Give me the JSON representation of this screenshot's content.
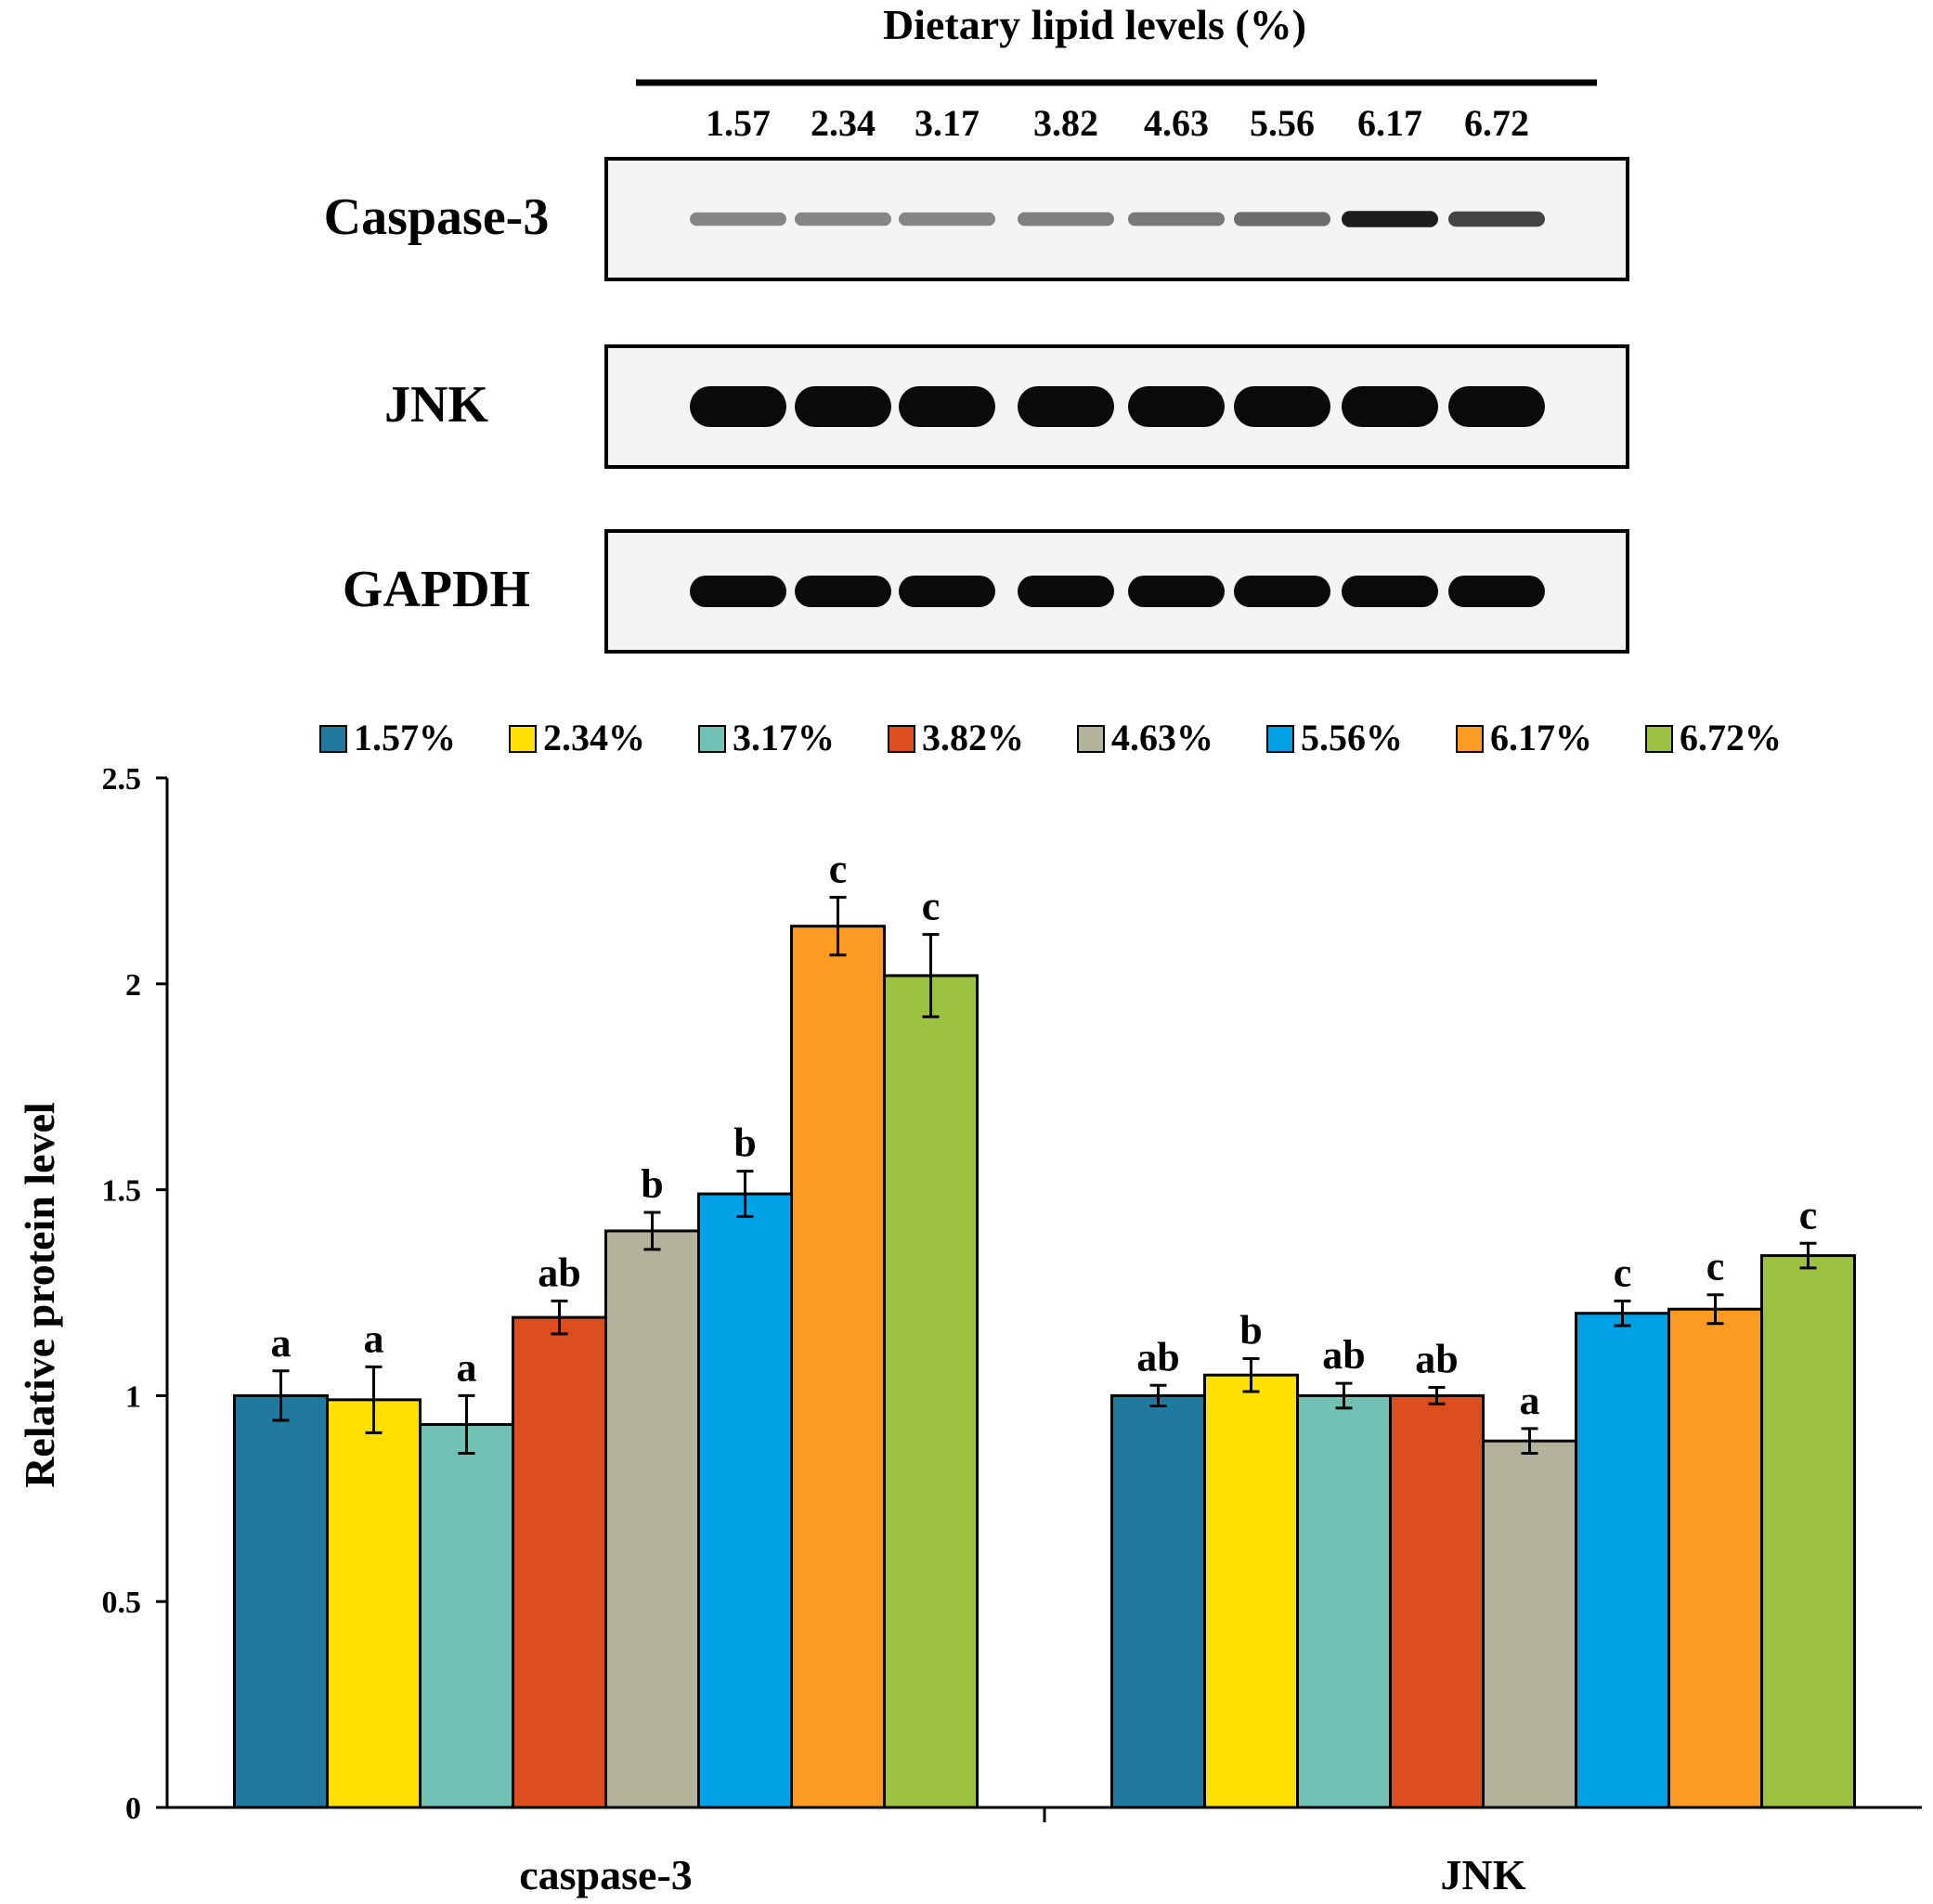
{
  "blot": {
    "title": "Dietary lipid levels (%)",
    "lanes": [
      "1.57",
      "2.34",
      "3.17",
      "3.82",
      "4.63",
      "5.56",
      "6.17",
      "6.72"
    ],
    "rows": [
      {
        "label": "Caspase-3",
        "band_intensity": [
          0.35,
          0.35,
          0.35,
          0.38,
          0.42,
          0.48,
          0.9,
          0.7
        ]
      },
      {
        "label": "JNK",
        "band_intensity": [
          1,
          1,
          1,
          1,
          1,
          1,
          1,
          1
        ]
      },
      {
        "label": "GAPDH",
        "band_intensity": [
          1,
          1,
          1,
          1,
          1,
          1,
          1,
          1
        ]
      }
    ]
  },
  "chart_data": {
    "type": "bar",
    "title": "",
    "xlabel": "",
    "ylabel": "Relative protein level",
    "ylim": [
      0,
      2.5
    ],
    "yticks": [
      "0",
      "0.5",
      "1",
      "1.5",
      "2",
      "2.5"
    ],
    "ytick_values": [
      0,
      0.5,
      1,
      1.5,
      2,
      2.5
    ],
    "categories": [
      "caspase-3",
      "JNK"
    ],
    "legend_position": "top",
    "grid": false,
    "series": [
      {
        "name": "1.57%",
        "color": "#21799E",
        "values": [
          1.0,
          1.0
        ],
        "errors": [
          0.06,
          0.025
        ],
        "letters": [
          "a",
          "ab"
        ]
      },
      {
        "name": "2.34%",
        "color": "#FFE000",
        "values": [
          0.99,
          1.05
        ],
        "errors": [
          0.08,
          0.04
        ],
        "letters": [
          "a",
          "b"
        ]
      },
      {
        "name": "3.17%",
        "color": "#71C2B5",
        "values": [
          0.93,
          1.0
        ],
        "errors": [
          0.07,
          0.03
        ],
        "letters": [
          "a",
          "ab"
        ]
      },
      {
        "name": "3.82%",
        "color": "#DC4E1E",
        "values": [
          1.19,
          1.0
        ],
        "errors": [
          0.04,
          0.02
        ],
        "letters": [
          "ab",
          "ab"
        ]
      },
      {
        "name": "4.63%",
        "color": "#B3B29B",
        "values": [
          1.4,
          0.89
        ],
        "errors": [
          0.045,
          0.03
        ],
        "letters": [
          "b",
          "a"
        ]
      },
      {
        "name": "5.56%",
        "color": "#00A2E5",
        "values": [
          1.49,
          1.2
        ],
        "errors": [
          0.055,
          0.03
        ],
        "letters": [
          "b",
          "c"
        ]
      },
      {
        "name": "6.17%",
        "color": "#FB9B21",
        "values": [
          2.14,
          1.21
        ],
        "errors": [
          0.07,
          0.035
        ],
        "letters": [
          "c",
          "c"
        ]
      },
      {
        "name": "6.72%",
        "color": "#9CC241",
        "values": [
          2.02,
          1.34
        ],
        "errors": [
          0.1,
          0.03
        ],
        "letters": [
          "c",
          "c"
        ]
      }
    ]
  }
}
